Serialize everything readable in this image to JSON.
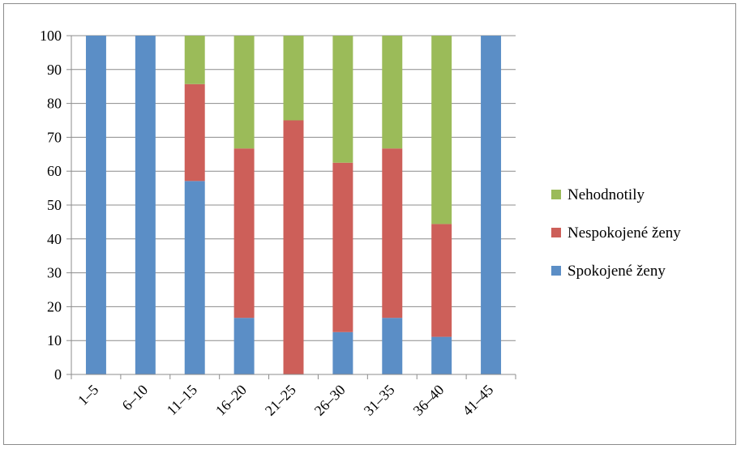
{
  "chart_data": {
    "type": "bar",
    "stacked": true,
    "categories": [
      "1–5",
      "6–10",
      "11–15",
      "16–20",
      "21–25",
      "26–30",
      "31–35",
      "36–40",
      "41–45"
    ],
    "series": [
      {
        "name": "Spokojené ženy",
        "color": "#5b8ec6",
        "values": [
          100,
          100,
          57.1,
          16.7,
          0,
          12.5,
          16.7,
          11.1,
          100
        ]
      },
      {
        "name": "Nespokojené ženy",
        "color": "#cd5f59",
        "values": [
          0,
          0,
          28.6,
          50.0,
          75.0,
          50.0,
          50.0,
          33.3,
          0
        ]
      },
      {
        "name": "Nehodnotily",
        "color": "#9bbb59",
        "values": [
          0,
          0,
          14.3,
          33.3,
          25.0,
          37.5,
          33.3,
          55.6,
          0
        ]
      }
    ],
    "legend_order": [
      "Nehodnotily",
      "Nespokojené ženy",
      "Spokojené ženy"
    ],
    "legend_position": "right",
    "ylim": [
      0,
      100
    ],
    "yticks": [
      0,
      10,
      20,
      30,
      40,
      50,
      60,
      70,
      80,
      90,
      100
    ],
    "grid": "horizontal",
    "xlabel": "",
    "ylabel": "",
    "title": ""
  }
}
